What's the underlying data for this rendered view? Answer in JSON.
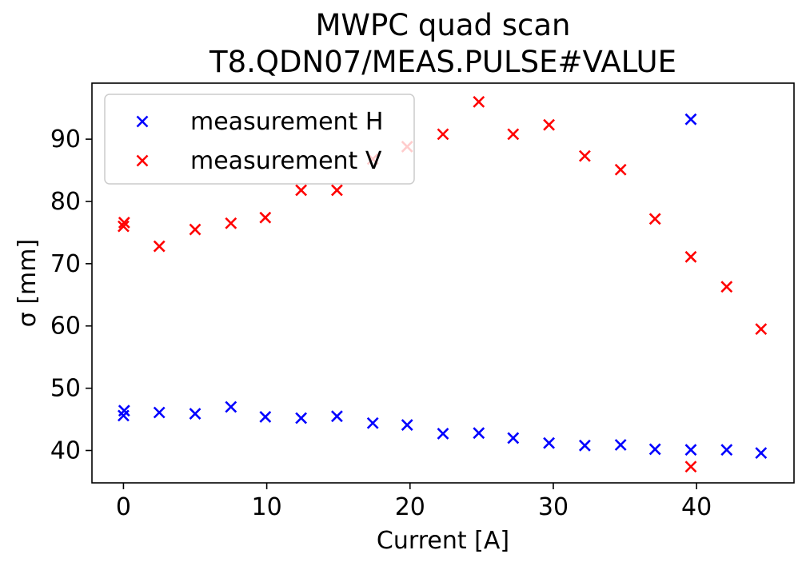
{
  "chart_data": {
    "type": "scatter",
    "title": [
      "MWPC quad scan",
      "T8.QDN07/MEAS.PULSE#VALUE"
    ],
    "xlabel": "Current [A]",
    "ylabel": "σ [mm]",
    "xlim": [
      -2.2,
      46.8
    ],
    "ylim": [
      34.8,
      99.0
    ],
    "xticks": [
      0,
      10,
      20,
      30,
      40
    ],
    "yticks": [
      40,
      50,
      60,
      70,
      80,
      90
    ],
    "grid": false,
    "legend_position": "top-left",
    "marker": "x",
    "series": [
      {
        "name": "measurement H",
        "color": "#0000ff",
        "points": [
          [
            0.0,
            45.6
          ],
          [
            0.05,
            46.4
          ],
          [
            2.5,
            46.1
          ],
          [
            5.0,
            45.9
          ],
          [
            7.5,
            47.0
          ],
          [
            9.9,
            45.4
          ],
          [
            12.4,
            45.2
          ],
          [
            14.9,
            45.5
          ],
          [
            17.4,
            44.4
          ],
          [
            19.8,
            44.1
          ],
          [
            22.3,
            42.7
          ],
          [
            24.8,
            42.8
          ],
          [
            27.2,
            42.0
          ],
          [
            29.7,
            41.2
          ],
          [
            32.2,
            40.8
          ],
          [
            34.7,
            40.9
          ],
          [
            37.1,
            40.2
          ],
          [
            39.6,
            40.1
          ],
          [
            39.6,
            93.2
          ],
          [
            42.1,
            40.1
          ],
          [
            44.5,
            39.6
          ]
        ]
      },
      {
        "name": "measurement V",
        "color": "#ff0000",
        "points": [
          [
            0.0,
            76.0
          ],
          [
            0.05,
            76.6
          ],
          [
            2.5,
            72.8
          ],
          [
            5.0,
            75.5
          ],
          [
            7.5,
            76.5
          ],
          [
            9.9,
            77.4
          ],
          [
            12.4,
            81.8
          ],
          [
            14.9,
            81.8
          ],
          [
            17.4,
            86.8
          ],
          [
            19.8,
            88.8
          ],
          [
            22.3,
            90.8
          ],
          [
            24.8,
            96.0
          ],
          [
            27.2,
            90.8
          ],
          [
            29.7,
            92.3
          ],
          [
            32.2,
            87.3
          ],
          [
            34.7,
            85.1
          ],
          [
            37.1,
            77.2
          ],
          [
            39.6,
            71.1
          ],
          [
            39.6,
            37.4
          ],
          [
            42.1,
            66.3
          ],
          [
            44.5,
            59.5
          ]
        ]
      }
    ]
  }
}
